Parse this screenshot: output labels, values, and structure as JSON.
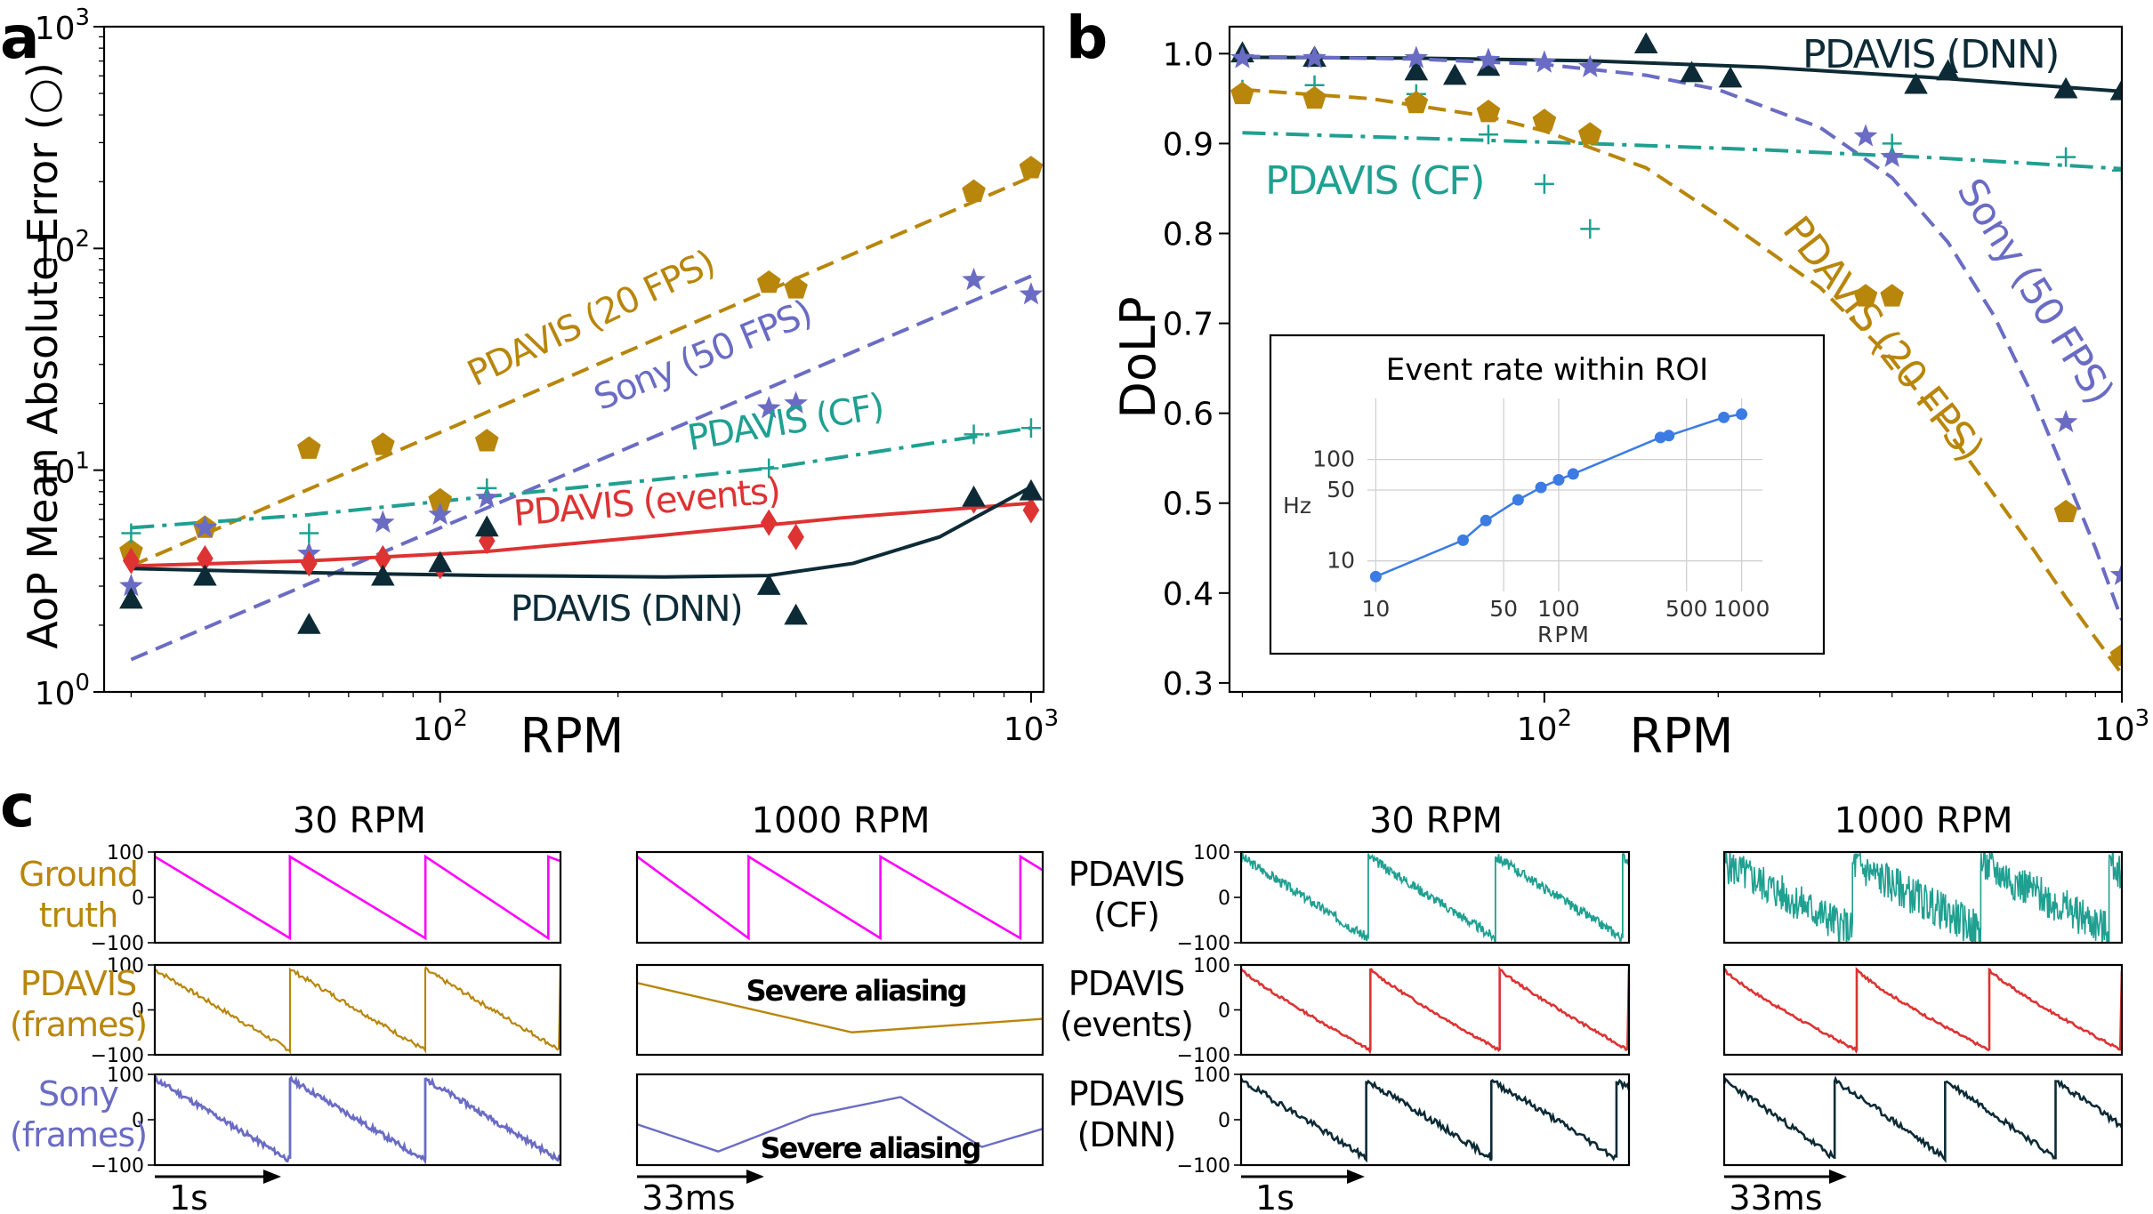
{
  "panel_letters": {
    "a": "a",
    "b": "b",
    "c": "c"
  },
  "chart_data": [
    {
      "id": "a",
      "type": "scatter",
      "xlabel": "RPM",
      "ylabel": "AoP Mean Absolute Error (○)",
      "xscale": "log",
      "yscale": "log",
      "xlim": [
        27,
        1050
      ],
      "ylim": [
        1,
        1000
      ],
      "x_ticks": [
        {
          "value": 100,
          "label": "10",
          "exp": "2"
        },
        {
          "value": 1000,
          "label": "10",
          "exp": "3"
        }
      ],
      "y_ticks": [
        {
          "value": 1,
          "label": "10",
          "exp": "0"
        },
        {
          "value": 10,
          "label": "10",
          "exp": "1"
        },
        {
          "value": 100,
          "label": "10",
          "exp": "2"
        },
        {
          "value": 1000,
          "label": "10",
          "exp": "3"
        }
      ],
      "series": [
        {
          "name": "PDAVIS (20 FPS)",
          "color": "#b8860b",
          "marker": "pentagon",
          "line": "dashed",
          "x": [
            30,
            40,
            60,
            80,
            100,
            120,
            360,
            400,
            800,
            1000
          ],
          "y": [
            4.3,
            5.5,
            12.5,
            13,
            7.3,
            13.5,
            70,
            66,
            180,
            230
          ],
          "fit_x": [
            30,
            1000
          ],
          "fit_y": [
            3.7,
            210
          ]
        },
        {
          "name": "Sony (50 FPS)",
          "color": "#6a6cc4",
          "marker": "star",
          "line": "dashed",
          "x": [
            30,
            40,
            60,
            80,
            100,
            120,
            360,
            400,
            800,
            1000
          ],
          "y": [
            3.0,
            5.5,
            4.2,
            5.8,
            6.3,
            7.5,
            19,
            20,
            72,
            62
          ],
          "fit_x": [
            30,
            1000
          ],
          "fit_y": [
            1.4,
            75
          ]
        },
        {
          "name": "PDAVIS (CF)",
          "color": "#1fa091",
          "marker": "plus",
          "line": "dashdot",
          "x": [
            30,
            60,
            120,
            360,
            800,
            1000
          ],
          "y": [
            5.2,
            5.2,
            8.3,
            10.2,
            14.5,
            15.5
          ],
          "fit_x": [
            30,
            60,
            120,
            360,
            1000
          ],
          "fit_y": [
            5.5,
            6.3,
            7.6,
            10.2,
            15.5
          ]
        },
        {
          "name": "PDAVIS (events)",
          "color": "#dd3333",
          "marker": "diamond",
          "line": "solid",
          "x": [
            30,
            40,
            60,
            80,
            100,
            120,
            360,
            400,
            800,
            1000
          ],
          "y": [
            3.9,
            4.0,
            3.8,
            4.0,
            3.7,
            4.8,
            5.8,
            5.0,
            7.3,
            6.6
          ],
          "fit_x": [
            30,
            60,
            120,
            240,
            480,
            1000
          ],
          "fit_y": [
            3.7,
            3.9,
            4.3,
            5.1,
            6.1,
            7.1
          ]
        },
        {
          "name": "PDAVIS (DNN)",
          "color": "#0d2b36",
          "marker": "triangle",
          "line": "solid",
          "x": [
            30,
            40,
            60,
            80,
            100,
            120,
            360,
            400,
            800,
            1000
          ],
          "y": [
            2.6,
            3.3,
            2.0,
            3.3,
            3.8,
            5.5,
            3.0,
            2.2,
            7.5,
            8.0
          ],
          "fit_x": [
            30,
            60,
            120,
            240,
            360,
            500,
            700,
            1000
          ],
          "fit_y": [
            3.6,
            3.45,
            3.35,
            3.3,
            3.35,
            3.8,
            5.0,
            8.4
          ]
        }
      ],
      "annotations": [
        "PDAVIS (20 FPS)",
        "Sony (50 FPS)",
        "PDAVIS (CF)",
        "PDAVIS (events)",
        "PDAVIS (DNN)"
      ]
    },
    {
      "id": "b",
      "type": "scatter",
      "xlabel": "RPM",
      "ylabel": "DoLP",
      "xscale": "log",
      "yscale": "linear",
      "xlim": [
        28.5,
        1000
      ],
      "ylim": [
        0.29,
        1.03
      ],
      "x_ticks": [
        {
          "value": 100,
          "label": "10",
          "exp": "2"
        },
        {
          "value": 1000,
          "label": "10",
          "exp": "3"
        }
      ],
      "y_ticks": [
        0.3,
        0.4,
        0.5,
        0.6,
        0.7,
        0.8,
        0.9,
        1.0
      ],
      "series": [
        {
          "name": "PDAVIS (DNN)",
          "color": "#0d2b36",
          "marker": "triangle",
          "line": "solid",
          "x": [
            30,
            40,
            60,
            70,
            80,
            150,
            180,
            210,
            440,
            500,
            800,
            1000
          ],
          "y": [
            1.0,
            0.995,
            0.98,
            0.975,
            0.985,
            1.01,
            0.978,
            0.972,
            0.965,
            0.98,
            0.96,
            0.958
          ],
          "fit_x": [
            30,
            60,
            120,
            240,
            480,
            1000
          ],
          "fit_y": [
            0.996,
            0.995,
            0.992,
            0.985,
            0.973,
            0.958
          ]
        },
        {
          "name": "Sony (50 FPS)",
          "color": "#6a6cc4",
          "marker": "star",
          "line": "dashed",
          "x": [
            30,
            40,
            60,
            80,
            100,
            120,
            360,
            400,
            800,
            1000
          ],
          "y": [
            0.995,
            0.995,
            0.995,
            0.993,
            0.99,
            0.985,
            0.908,
            0.885,
            0.59,
            0.42
          ],
          "fit_x": [
            30,
            60,
            100,
            150,
            200,
            300,
            400,
            500,
            600,
            700,
            800,
            900,
            1000
          ],
          "fit_y": [
            0.997,
            0.994,
            0.988,
            0.976,
            0.96,
            0.918,
            0.862,
            0.79,
            0.709,
            0.62,
            0.53,
            0.45,
            0.37
          ]
        },
        {
          "name": "PDAVIS (CF)",
          "color": "#1fa091",
          "marker": "plus",
          "line": "dashdot",
          "x": [
            30,
            40,
            60,
            80,
            100,
            120,
            400,
            800,
            1000
          ],
          "y": [
            0.96,
            0.965,
            0.955,
            0.91,
            0.855,
            0.805,
            0.9,
            0.885,
            0.87
          ],
          "fit_x": [
            30,
            60,
            120,
            240,
            480,
            1000
          ],
          "fit_y": [
            0.912,
            0.906,
            0.9,
            0.893,
            0.884,
            0.872
          ]
        },
        {
          "name": "PDAVIS (20 FPS)",
          "color": "#b8860b",
          "marker": "pentagon",
          "line": "dashed",
          "x": [
            30,
            40,
            60,
            80,
            100,
            120,
            360,
            400,
            800,
            1000
          ],
          "y": [
            0.955,
            0.95,
            0.945,
            0.935,
            0.925,
            0.91,
            0.73,
            0.73,
            0.49,
            0.33
          ],
          "fit_x": [
            30,
            50,
            80,
            100,
            150,
            200,
            300,
            400,
            500,
            600,
            700,
            800,
            900,
            1000
          ],
          "fit_y": [
            0.96,
            0.95,
            0.93,
            0.914,
            0.873,
            0.82,
            0.74,
            0.66,
            0.58,
            0.51,
            0.45,
            0.395,
            0.35,
            0.31
          ]
        }
      ],
      "annotations": [
        "PDAVIS (DNN)",
        "PDAVIS (CF)",
        "Sony (50 FPS)",
        "PDAVIS (20 FPS)"
      ],
      "inset": {
        "type": "line",
        "title": "Event rate within ROI",
        "xlabel": "RPM",
        "ylabel": "Hz",
        "xscale": "log",
        "yscale": "log",
        "xlim": [
          9,
          1300
        ],
        "ylim": [
          5,
          400
        ],
        "x_ticks": [
          10,
          50,
          100,
          500,
          1000
        ],
        "y_ticks": [
          10,
          50,
          100
        ],
        "color": "#3b7be3",
        "x": [
          10,
          30,
          40,
          60,
          80,
          100,
          120,
          360,
          400,
          800,
          1000
        ],
        "y": [
          7,
          16,
          25,
          40,
          53,
          63,
          72,
          165,
          172,
          260,
          280
        ]
      }
    },
    {
      "id": "c",
      "type": "line",
      "column_titles": [
        "30 RPM",
        "1000 RPM",
        "30 RPM",
        "1000 RPM"
      ],
      "y_ticks": [
        "100",
        "0",
        "−100"
      ],
      "row_labels_left": [
        {
          "lines": [
            "Ground",
            "truth"
          ],
          "color": "#b8860b"
        },
        {
          "lines": [
            "PDAVIS",
            "(frames)"
          ],
          "color": "#b8860b"
        },
        {
          "lines": [
            "Sony",
            "(frames)"
          ],
          "color": "#6a6cc4"
        }
      ],
      "row_labels_right": [
        {
          "lines": [
            "PDAVIS",
            "(CF)"
          ],
          "color": "#000000"
        },
        {
          "lines": [
            "PDAVIS",
            "(events)"
          ],
          "color": "#000000"
        },
        {
          "lines": [
            "PDAVIS",
            "(DNN)"
          ],
          "color": "#000000"
        }
      ],
      "annotations": [
        "Severe aliasing",
        "Severe aliasing"
      ],
      "time_labels": [
        "1s",
        "33ms",
        "1s",
        "33ms"
      ],
      "series_colors": {
        "ground_truth": "#ff00ff",
        "pdavis_frames": "#b8860b",
        "sony_frames": "#6a6cc4",
        "pdavis_cf": "#1fa091",
        "pdavis_events": "#dd3333",
        "pdavis_dnn": "#0d2b36"
      },
      "ground_truth_ramps": [
        {
          "t": [
            0.0,
            0.333,
            0.333,
            0.667,
            0.667,
            0.97,
            0.97,
            1.0
          ],
          "y": [
            90,
            -90,
            90,
            -90,
            90,
            -90,
            90,
            80
          ]
        },
        {
          "t": [
            0.0,
            0.0,
            0.275,
            0.275,
            0.6,
            0.6,
            0.945,
            0.945,
            1.0
          ],
          "y": [
            90,
            90,
            -90,
            90,
            -90,
            90,
            -90,
            90,
            60
          ]
        }
      ],
      "aliased_1000rpm": {
        "pdavis_frames": {
          "t": [
            0.0,
            0.53,
            1.0
          ],
          "y": [
            60,
            -50,
            -20
          ]
        },
        "sony_frames": {
          "t": [
            0.0,
            0.2,
            0.43,
            0.65,
            0.85,
            1.0
          ],
          "y": [
            -10,
            -70,
            10,
            50,
            -60,
            -20
          ]
        }
      }
    }
  ]
}
